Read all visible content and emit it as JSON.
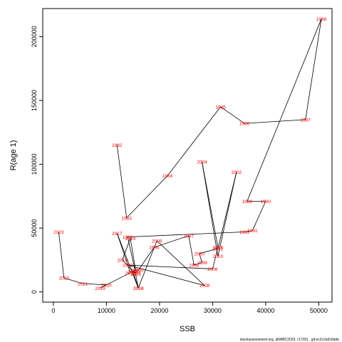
{
  "chart_data": {
    "type": "line",
    "xlabel": "SSB",
    "ylabel": "R(age 1)",
    "xlim": [
      -2000,
      52500
    ],
    "ylim": [
      -8000,
      222000
    ],
    "xticks": [
      0,
      10000,
      20000,
      30000,
      40000,
      50000
    ],
    "yticks": [
      0,
      50000,
      100000,
      150000,
      200000
    ],
    "footer": "stockassessment.org, allWBC2023, r17391 , git:ec2c2a0c6dde",
    "line_color": "#000000",
    "label_color": "#ff0000",
    "points": [
      {
        "year": "1982",
        "x": 12000,
        "y": 115000
      },
      {
        "year": "1983",
        "x": 13800,
        "y": 58000
      },
      {
        "year": "1984",
        "x": 21500,
        "y": 91000
      },
      {
        "year": "1985",
        "x": 31500,
        "y": 145000
      },
      {
        "year": "1986",
        "x": 36000,
        "y": 132000
      },
      {
        "year": "1987",
        "x": 47500,
        "y": 135000
      },
      {
        "year": "1988",
        "x": 50500,
        "y": 214000
      },
      {
        "year": "1989",
        "x": 36500,
        "y": 71000
      },
      {
        "year": "1990",
        "x": 40000,
        "y": 71000
      },
      {
        "year": "1991",
        "x": 37500,
        "y": 48000
      },
      {
        "year": "1992",
        "x": 36000,
        "y": 47000
      },
      {
        "year": "1993",
        "x": 14000,
        "y": 43000
      },
      {
        "year": "1994",
        "x": 15500,
        "y": 15000
      },
      {
        "year": "1995",
        "x": 16000,
        "y": 17000
      },
      {
        "year": "1996",
        "x": 19000,
        "y": 35000
      },
      {
        "year": "1997",
        "x": 25500,
        "y": 44000
      },
      {
        "year": "1998",
        "x": 26500,
        "y": 21000
      },
      {
        "year": "1999",
        "x": 28000,
        "y": 23000
      },
      {
        "year": "2000",
        "x": 27500,
        "y": 30000
      },
      {
        "year": "2001",
        "x": 31000,
        "y": 34000
      },
      {
        "year": "2002",
        "x": 34500,
        "y": 94000
      },
      {
        "year": "2003",
        "x": 31000,
        "y": 28000
      },
      {
        "year": "2004",
        "x": 28000,
        "y": 102000
      },
      {
        "year": "2005",
        "x": 31000,
        "y": 35000
      },
      {
        "year": "2006",
        "x": 30000,
        "y": 18000
      },
      {
        "year": "2007",
        "x": 14000,
        "y": 21000
      },
      {
        "year": "2008",
        "x": 28500,
        "y": 5000
      },
      {
        "year": "2009",
        "x": 19500,
        "y": 40000
      },
      {
        "year": "2010",
        "x": 16000,
        "y": 3000
      },
      {
        "year": "2011",
        "x": 15000,
        "y": 16000
      },
      {
        "year": "2012",
        "x": 15500,
        "y": 17000
      },
      {
        "year": "2013",
        "x": 14500,
        "y": 42000
      },
      {
        "year": "2014",
        "x": 13000,
        "y": 25000
      },
      {
        "year": "2015",
        "x": 15500,
        "y": 14000
      },
      {
        "year": "2016",
        "x": 16000,
        "y": 3000
      },
      {
        "year": "2017",
        "x": 12000,
        "y": 46000
      },
      {
        "year": "2018",
        "x": 14500,
        "y": 15000
      },
      {
        "year": "2019",
        "x": 8800,
        "y": 3000
      },
      {
        "year": "2020",
        "x": 10000,
        "y": 5500
      },
      {
        "year": "2021",
        "x": 5500,
        "y": 6500
      },
      {
        "year": "2022",
        "x": 2000,
        "y": 11000
      },
      {
        "year": "2023",
        "x": 1000,
        "y": 47000
      }
    ]
  }
}
